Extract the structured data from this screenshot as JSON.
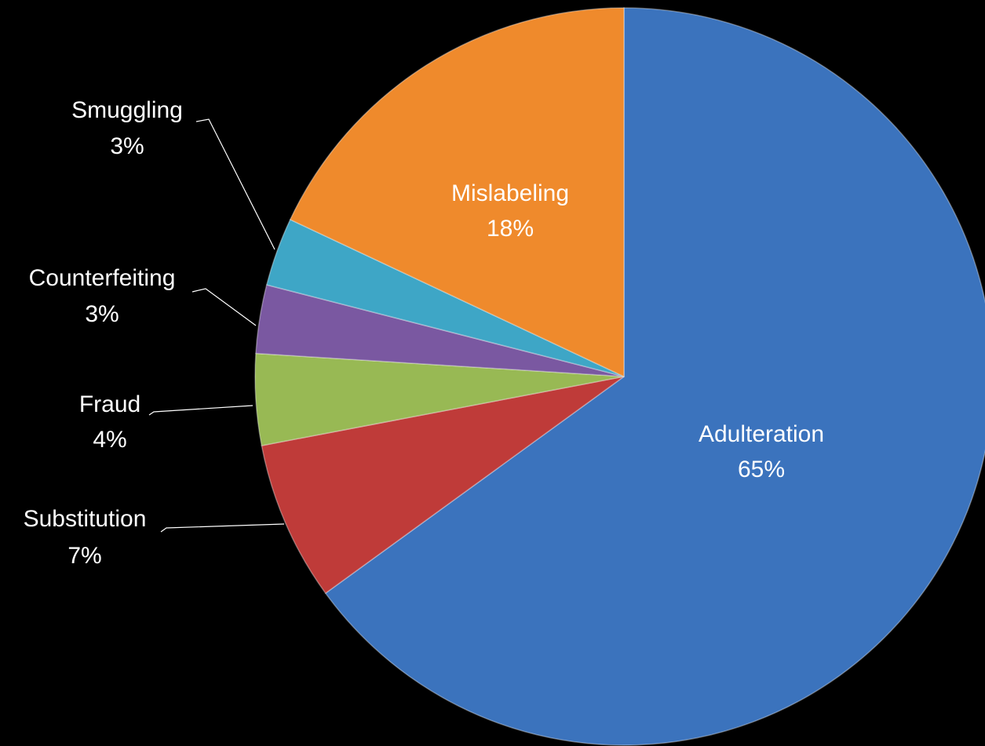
{
  "chart_data": {
    "type": "pie",
    "categories": [
      "Adulteration",
      "Substitution",
      "Fraud",
      "Counterfeiting",
      "Smuggling",
      "Mislabeling"
    ],
    "values": [
      65,
      7,
      4,
      3,
      3,
      18
    ],
    "value_labels": [
      "65%",
      "7%",
      "4%",
      "3%",
      "3%",
      "18%"
    ],
    "colors": [
      "#3b73bd",
      "#bf3b39",
      "#98b954",
      "#7a58a1",
      "#3ea6c6",
      "#ef8a2c"
    ]
  }
}
